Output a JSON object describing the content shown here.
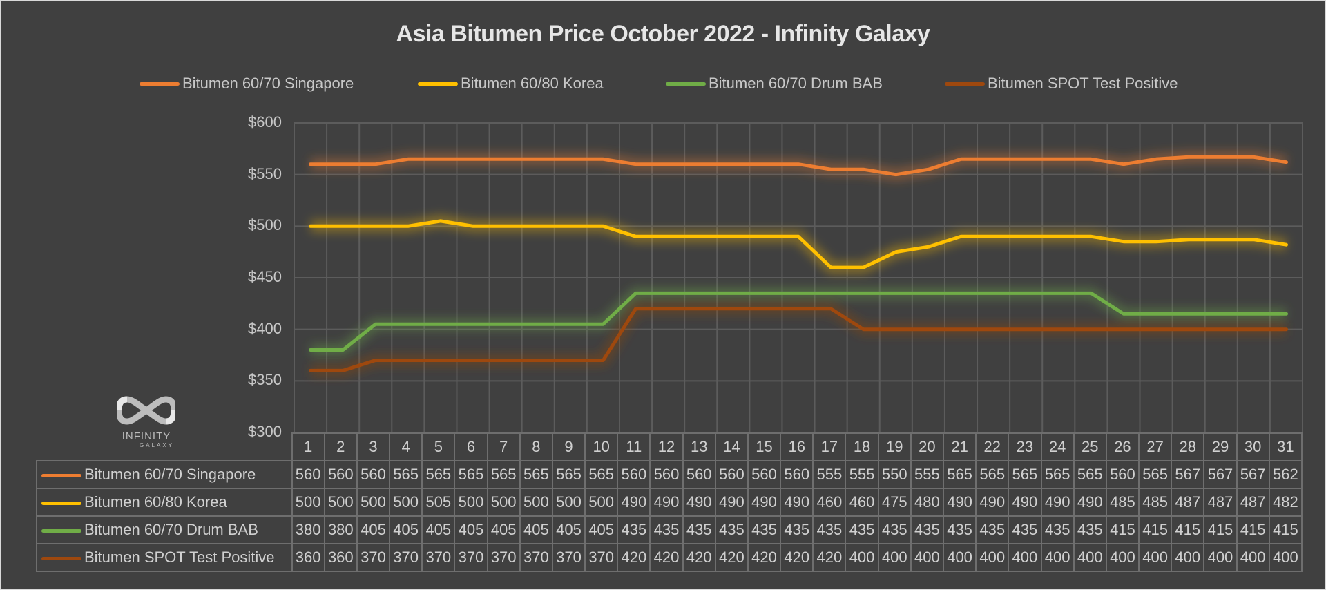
{
  "chart_data": {
    "type": "line",
    "title": "Asia Bitumen Price October 2022 - Infinity Galaxy",
    "xlabel": "",
    "ylabel": "",
    "ylim": [
      300,
      600
    ],
    "yticks": [
      "$600",
      "$550",
      "$500",
      "$450",
      "$400",
      "$350",
      "$300"
    ],
    "ytick_values": [
      600,
      550,
      500,
      450,
      400,
      350,
      300
    ],
    "grid": true,
    "legend_position": "top",
    "x": [
      1,
      2,
      3,
      4,
      5,
      6,
      7,
      8,
      9,
      10,
      11,
      12,
      13,
      14,
      15,
      16,
      17,
      18,
      19,
      20,
      21,
      22,
      23,
      24,
      25,
      26,
      27,
      28,
      29,
      30,
      31
    ],
    "series": [
      {
        "name": "Bitumen 60/70 Singapore",
        "color": "#ED7D31",
        "values": [
          560,
          560,
          560,
          565,
          565,
          565,
          565,
          565,
          565,
          565,
          560,
          560,
          560,
          560,
          560,
          560,
          555,
          555,
          550,
          555,
          565,
          565,
          565,
          565,
          565,
          560,
          565,
          567,
          567,
          567,
          562
        ]
      },
      {
        "name": "Bitumen 60/80 Korea",
        "color": "#FFC000",
        "values": [
          500,
          500,
          500,
          500,
          505,
          500,
          500,
          500,
          500,
          500,
          490,
          490,
          490,
          490,
          490,
          490,
          460,
          460,
          475,
          480,
          490,
          490,
          490,
          490,
          490,
          485,
          485,
          487,
          487,
          487,
          482
        ]
      },
      {
        "name": "Bitumen 60/70 Drum BAB",
        "color": "#70AD47",
        "values": [
          380,
          380,
          405,
          405,
          405,
          405,
          405,
          405,
          405,
          405,
          435,
          435,
          435,
          435,
          435,
          435,
          435,
          435,
          435,
          435,
          435,
          435,
          435,
          435,
          435,
          415,
          415,
          415,
          415,
          415,
          415
        ]
      },
      {
        "name": "Bitumen SPOT Test Positive",
        "color": "#9E480E",
        "values": [
          360,
          360,
          370,
          370,
          370,
          370,
          370,
          370,
          370,
          370,
          420,
          420,
          420,
          420,
          420,
          420,
          420,
          400,
          400,
          400,
          400,
          400,
          400,
          400,
          400,
          400,
          400,
          400,
          400,
          400,
          400
        ]
      }
    ],
    "data_table": true
  },
  "logo": {
    "line1": "INFINITY",
    "line2": "GALAXY"
  }
}
